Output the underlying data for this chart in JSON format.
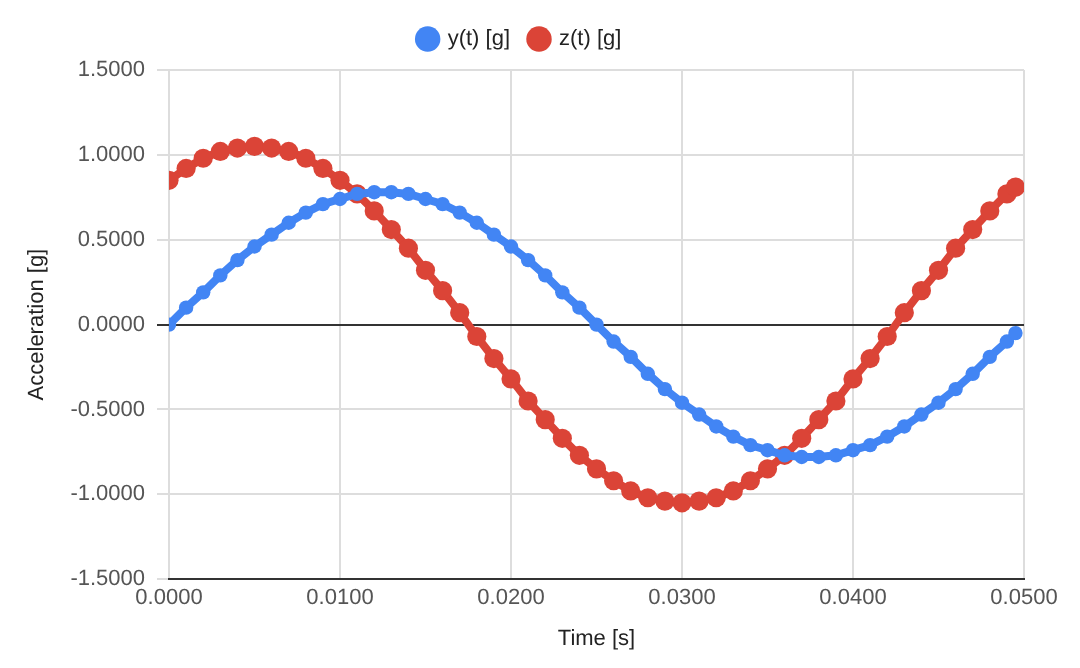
{
  "chart_data": {
    "type": "line",
    "xlabel": "Time [s]",
    "ylabel": "Acceleration [g]",
    "x": [
      0,
      0.001,
      0.002,
      0.003,
      0.004,
      0.005,
      0.006,
      0.007,
      0.008,
      0.009,
      0.01,
      0.011,
      0.012,
      0.013,
      0.014,
      0.015,
      0.016,
      0.017,
      0.018,
      0.019,
      0.02,
      0.021,
      0.022,
      0.023,
      0.024,
      0.025,
      0.026,
      0.027,
      0.028,
      0.029,
      0.03,
      0.031,
      0.032,
      0.033,
      0.034,
      0.035,
      0.036,
      0.037,
      0.038,
      0.039,
      0.04,
      0.041,
      0.042,
      0.043,
      0.044,
      0.045,
      0.046,
      0.047,
      0.048,
      0.049,
      0.0495
    ],
    "series": [
      {
        "name": "y(t) [g]",
        "color": "#4285f4",
        "values": [
          0,
          0.1,
          0.19,
          0.29,
          0.38,
          0.46,
          0.53,
          0.6,
          0.66,
          0.71,
          0.74,
          0.77,
          0.78,
          0.78,
          0.77,
          0.74,
          0.71,
          0.66,
          0.6,
          0.53,
          0.46,
          0.38,
          0.29,
          0.19,
          0.1,
          0,
          -0.1,
          -0.19,
          -0.29,
          -0.38,
          -0.46,
          -0.53,
          -0.6,
          -0.66,
          -0.71,
          -0.74,
          -0.77,
          -0.78,
          -0.78,
          -0.77,
          -0.74,
          -0.71,
          -0.66,
          -0.6,
          -0.53,
          -0.46,
          -0.38,
          -0.29,
          -0.19,
          -0.1,
          -0.05
        ]
      },
      {
        "name": "z(t) [g]",
        "color": "#db4437",
        "values": [
          0.85,
          0.92,
          0.98,
          1.02,
          1.04,
          1.05,
          1.04,
          1.02,
          0.98,
          0.92,
          0.85,
          0.77,
          0.67,
          0.56,
          0.45,
          0.32,
          0.2,
          0.07,
          -0.07,
          -0.2,
          -0.32,
          -0.45,
          -0.56,
          -0.67,
          -0.77,
          -0.85,
          -0.92,
          -0.98,
          -1.02,
          -1.04,
          -1.05,
          -1.04,
          -1.02,
          -0.98,
          -0.92,
          -0.85,
          -0.77,
          -0.67,
          -0.56,
          -0.45,
          -0.32,
          -0.2,
          -0.07,
          0.07,
          0.2,
          0.32,
          0.45,
          0.56,
          0.67,
          0.77,
          0.81
        ]
      }
    ],
    "xlim": [
      0,
      0.05
    ],
    "xticks": [
      {
        "value": 0,
        "label": "0.0000"
      },
      {
        "value": 0.01,
        "label": "0.0100"
      },
      {
        "value": 0.02,
        "label": "0.0200"
      },
      {
        "value": 0.03,
        "label": "0.0300"
      },
      {
        "value": 0.04,
        "label": "0.0400"
      },
      {
        "value": 0.05,
        "label": "0.0500"
      }
    ],
    "ylim": [
      -1.5,
      1.5
    ],
    "yticks": [
      {
        "value": -1.5,
        "label": "-1.5000"
      },
      {
        "value": -1,
        "label": "-1.0000"
      },
      {
        "value": -0.5,
        "label": "-0.5000"
      },
      {
        "value": 0,
        "label": "0.0000"
      },
      {
        "value": 0.5,
        "label": "0.5000"
      },
      {
        "value": 1,
        "label": "1.0000"
      },
      {
        "value": 1.5,
        "label": "1.5000"
      }
    ],
    "grid": true,
    "legend": "top",
    "marker": "circle",
    "line_style": "solid"
  }
}
